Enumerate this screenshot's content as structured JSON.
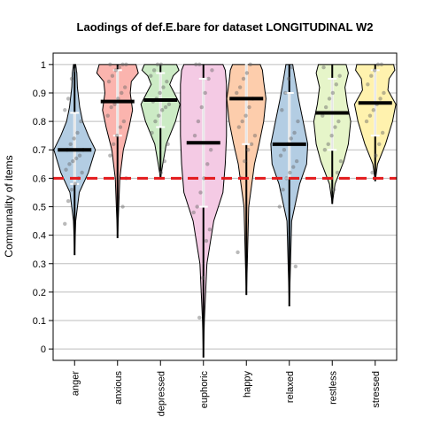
{
  "chart_data": {
    "type": "violin",
    "title": "Laodings of def.E.bare for dataset LONGITUDINAL W2",
    "xlabel": "",
    "ylabel": "Communality of items",
    "ylim": [
      -0.04,
      1.04
    ],
    "yticks": [
      "0",
      "0.1",
      "0.2",
      "0.3",
      "0.4",
      "0.5",
      "0.6",
      "0.7",
      "0.8",
      "0.9",
      "1"
    ],
    "grid": true,
    "threshold": 0.6,
    "threshold_color": "#e31a1c",
    "categories": [
      "anger",
      "anxious",
      "depressed",
      "euphoric",
      "happy",
      "relaxed",
      "restless",
      "stressed"
    ],
    "series": [
      {
        "category": "anger",
        "color": "#b3cde3",
        "min": 0.33,
        "max": 1.0,
        "mean": 0.7,
        "sd_low": 0.58,
        "sd_high": 0.83,
        "density": [
          [
            0.33,
            0
          ],
          [
            0.45,
            0.05
          ],
          [
            0.55,
            0.2
          ],
          [
            0.62,
            0.6
          ],
          [
            0.7,
            0.9
          ],
          [
            0.75,
            0.6
          ],
          [
            0.8,
            0.35
          ],
          [
            0.85,
            0.22
          ],
          [
            0.92,
            0.12
          ],
          [
            0.97,
            0.1
          ],
          [
            1.0,
            0.05
          ]
        ],
        "points": [
          0.44,
          0.52,
          0.56,
          0.58,
          0.6,
          0.62,
          0.63,
          0.65,
          0.66,
          0.67,
          0.68,
          0.7,
          0.7,
          0.72,
          0.74,
          0.76,
          0.8,
          0.84,
          0.88,
          0.95,
          0.98
        ]
      },
      {
        "category": "anxious",
        "color": "#fbb4ae",
        "min": 0.39,
        "max": 1.0,
        "mean": 0.87,
        "sd_low": 0.75,
        "sd_high": 0.98,
        "density": [
          [
            0.39,
            0
          ],
          [
            0.5,
            0.05
          ],
          [
            0.6,
            0.1
          ],
          [
            0.7,
            0.25
          ],
          [
            0.78,
            0.5
          ],
          [
            0.84,
            0.65
          ],
          [
            0.9,
            0.55
          ],
          [
            0.94,
            0.6
          ],
          [
            0.97,
            0.9
          ],
          [
            1.0,
            0.8
          ]
        ],
        "points": [
          0.5,
          0.6,
          0.68,
          0.72,
          0.75,
          0.78,
          0.8,
          0.82,
          0.85,
          0.86,
          0.88,
          0.9,
          0.92,
          0.94,
          0.96,
          0.98,
          0.99,
          1.0,
          1.0,
          1.0
        ]
      },
      {
        "category": "depressed",
        "color": "#ccebc5",
        "min": 0.6,
        "max": 1.0,
        "mean": 0.875,
        "sd_low": 0.78,
        "sd_high": 0.97,
        "density": [
          [
            0.6,
            0
          ],
          [
            0.65,
            0.1
          ],
          [
            0.72,
            0.25
          ],
          [
            0.8,
            0.65
          ],
          [
            0.86,
            0.85
          ],
          [
            0.9,
            0.6
          ],
          [
            0.93,
            0.4
          ],
          [
            0.96,
            0.55
          ],
          [
            0.98,
            0.8
          ],
          [
            1.0,
            0.7
          ]
        ],
        "points": [
          0.62,
          0.66,
          0.72,
          0.76,
          0.8,
          0.82,
          0.84,
          0.85,
          0.86,
          0.87,
          0.88,
          0.9,
          0.92,
          0.94,
          0.96,
          0.98,
          1.0,
          1.0
        ]
      },
      {
        "category": "euphoric",
        "color": "#f4cae4",
        "min": -0.03,
        "max": 1.0,
        "mean": 0.725,
        "sd_low": 0.5,
        "sd_high": 0.95,
        "density": [
          [
            -0.03,
            0
          ],
          [
            0.1,
            0.04
          ],
          [
            0.3,
            0.15
          ],
          [
            0.45,
            0.45
          ],
          [
            0.55,
            0.85
          ],
          [
            0.65,
            0.95
          ],
          [
            0.75,
            1.0
          ],
          [
            0.85,
            1.0
          ],
          [
            0.93,
            1.0
          ],
          [
            0.98,
            0.95
          ],
          [
            1.0,
            0.85
          ]
        ],
        "points": [
          0.11,
          0.25,
          0.38,
          0.42,
          0.48,
          0.5,
          0.55,
          0.6,
          0.65,
          0.7,
          0.75,
          0.8,
          0.85,
          0.9,
          0.95,
          0.98,
          1.0,
          1.0
        ]
      },
      {
        "category": "happy",
        "color": "#fdcdac",
        "min": 0.19,
        "max": 1.0,
        "mean": 0.88,
        "sd_low": 0.72,
        "sd_high": 1.01,
        "density": [
          [
            0.19,
            0
          ],
          [
            0.3,
            0.04
          ],
          [
            0.5,
            0.1
          ],
          [
            0.65,
            0.35
          ],
          [
            0.72,
            0.55
          ],
          [
            0.8,
            0.75
          ],
          [
            0.88,
            0.85
          ],
          [
            0.94,
            0.75
          ],
          [
            0.98,
            0.7
          ],
          [
            1.0,
            0.6
          ]
        ],
        "points": [
          0.34,
          0.6,
          0.66,
          0.7,
          0.72,
          0.75,
          0.78,
          0.8,
          0.82,
          0.85,
          0.88,
          0.9,
          0.92,
          0.95,
          0.97,
          1.0
        ]
      },
      {
        "category": "relaxed",
        "color": "#b3cde3",
        "min": 0.15,
        "max": 1.0,
        "mean": 0.72,
        "sd_low": 0.6,
        "sd_high": 0.9,
        "density": [
          [
            0.15,
            0
          ],
          [
            0.3,
            0.05
          ],
          [
            0.45,
            0.1
          ],
          [
            0.58,
            0.45
          ],
          [
            0.65,
            0.75
          ],
          [
            0.72,
            0.8
          ],
          [
            0.8,
            0.6
          ],
          [
            0.88,
            0.4
          ],
          [
            0.95,
            0.25
          ],
          [
            1.0,
            0.15
          ]
        ],
        "points": [
          0.29,
          0.5,
          0.56,
          0.6,
          0.62,
          0.64,
          0.66,
          0.68,
          0.7,
          0.72,
          0.74,
          0.76,
          0.8,
          0.84,
          0.9,
          0.95,
          0.99
        ]
      },
      {
        "category": "restless",
        "color": "#e6f5c9",
        "min": 0.51,
        "max": 1.0,
        "mean": 0.83,
        "sd_low": 0.7,
        "sd_high": 0.95,
        "density": [
          [
            0.51,
            0
          ],
          [
            0.58,
            0.12
          ],
          [
            0.66,
            0.5
          ],
          [
            0.72,
            0.7
          ],
          [
            0.8,
            0.8
          ],
          [
            0.86,
            0.65
          ],
          [
            0.92,
            0.55
          ],
          [
            0.97,
            0.7
          ],
          [
            1.0,
            0.6
          ]
        ],
        "points": [
          0.56,
          0.62,
          0.66,
          0.7,
          0.72,
          0.75,
          0.78,
          0.8,
          0.82,
          0.85,
          0.88,
          0.9,
          0.93,
          0.96,
          0.99
        ]
      },
      {
        "category": "stressed",
        "color": "#fff2ae",
        "min": 0.59,
        "max": 1.0,
        "mean": 0.865,
        "sd_low": 0.75,
        "sd_high": 0.98,
        "density": [
          [
            0.59,
            0
          ],
          [
            0.65,
            0.1
          ],
          [
            0.72,
            0.45
          ],
          [
            0.8,
            0.75
          ],
          [
            0.86,
            0.9
          ],
          [
            0.91,
            0.55
          ],
          [
            0.95,
            0.6
          ],
          [
            0.98,
            0.85
          ],
          [
            1.0,
            0.8
          ]
        ],
        "points": [
          0.62,
          0.68,
          0.72,
          0.76,
          0.8,
          0.82,
          0.84,
          0.86,
          0.88,
          0.9,
          0.93,
          0.96,
          0.98,
          1.0,
          1.0
        ]
      }
    ]
  }
}
